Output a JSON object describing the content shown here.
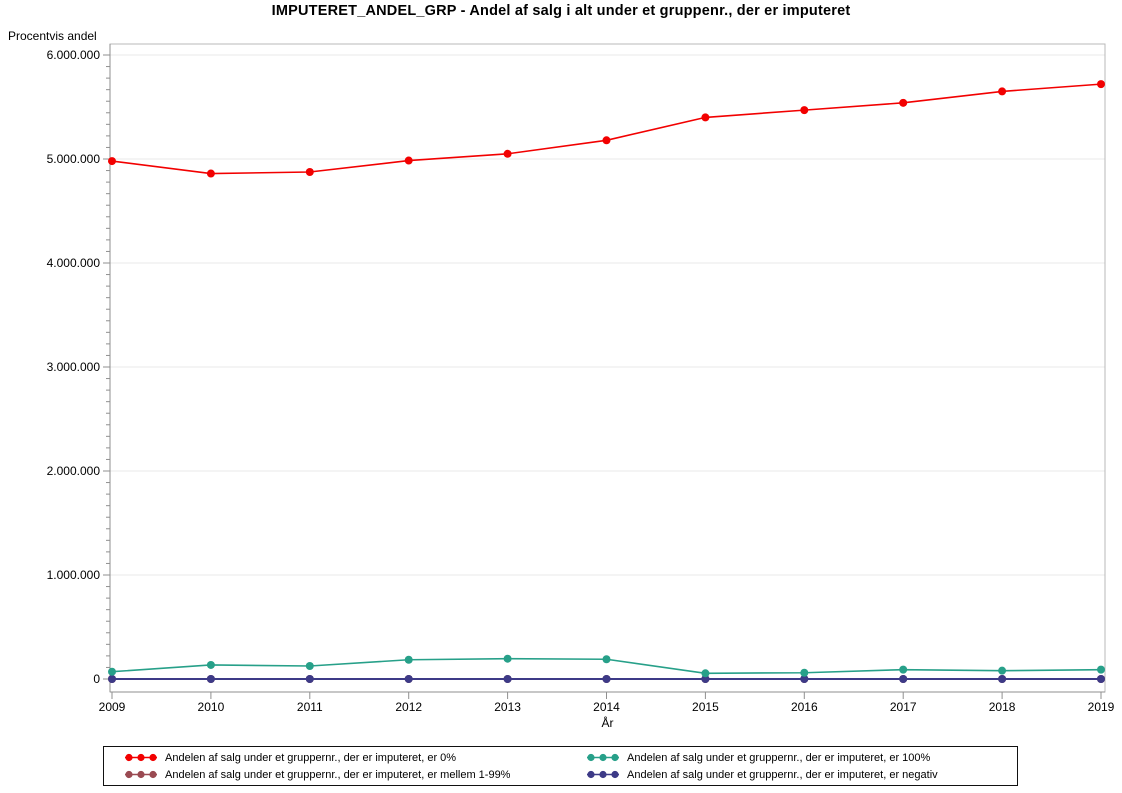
{
  "title": "IMPUTERET_ANDEL_GRP - Andel af salg i alt under et gruppenr., der er imputeret",
  "chart_data": {
    "type": "line",
    "title": "IMPUTERET_ANDEL_GRP - Andel af salg i alt under et gruppenr., der er imputeret",
    "xlabel": "År",
    "ylabel": "Procentvis andel",
    "x": [
      2009,
      2010,
      2011,
      2012,
      2013,
      2014,
      2015,
      2016,
      2017,
      2018,
      2019
    ],
    "x_tick_labels": [
      "2009",
      "2010",
      "2011",
      "2012",
      "2013",
      "2014",
      "2015",
      "2016",
      "2017",
      "2018",
      "2019"
    ],
    "y_ticks": [
      0,
      1000000,
      2000000,
      3000000,
      4000000,
      5000000,
      6000000
    ],
    "y_tick_labels": [
      "0",
      "1.000.000",
      "2.000.000",
      "3.000.000",
      "4.000.000",
      "5.000.000",
      "6.000.000"
    ],
    "ylim": [
      0,
      6000000
    ],
    "grid": "horizontal-major",
    "legend_position": "bottom",
    "marker": "filled-circle",
    "series": [
      {
        "name": "Andelen af salg under et gruppernr., der er imputeret, er 0%",
        "color": "#f20000",
        "values": [
          4980000,
          4860000,
          4875000,
          4985000,
          5050000,
          5180000,
          5400000,
          5470000,
          5540000,
          5650000,
          5720000
        ]
      },
      {
        "name": "Andelen af salg under et gruppernr., der er imputeret, er 100%",
        "color": "#27a089",
        "values": [
          70000,
          135000,
          125000,
          185000,
          195000,
          190000,
          55000,
          60000,
          90000,
          80000,
          90000
        ]
      },
      {
        "name": "Andelen af salg under et gruppernr., der er imputeret, er mellem 1-99%",
        "color": "#9a4a52",
        "values": [
          0,
          0,
          0,
          0,
          0,
          0,
          0,
          0,
          0,
          0,
          0
        ]
      },
      {
        "name": "Andelen af salg under et gruppernr., der er imputeret, er negativ",
        "color": "#3d3a87",
        "values": [
          0,
          0,
          0,
          0,
          0,
          0,
          0,
          0,
          0,
          0,
          0
        ]
      }
    ],
    "colors": {
      "grid": "#e8e8e8",
      "frame": "#b9b9b9",
      "axis": "#8f8f8f"
    }
  }
}
